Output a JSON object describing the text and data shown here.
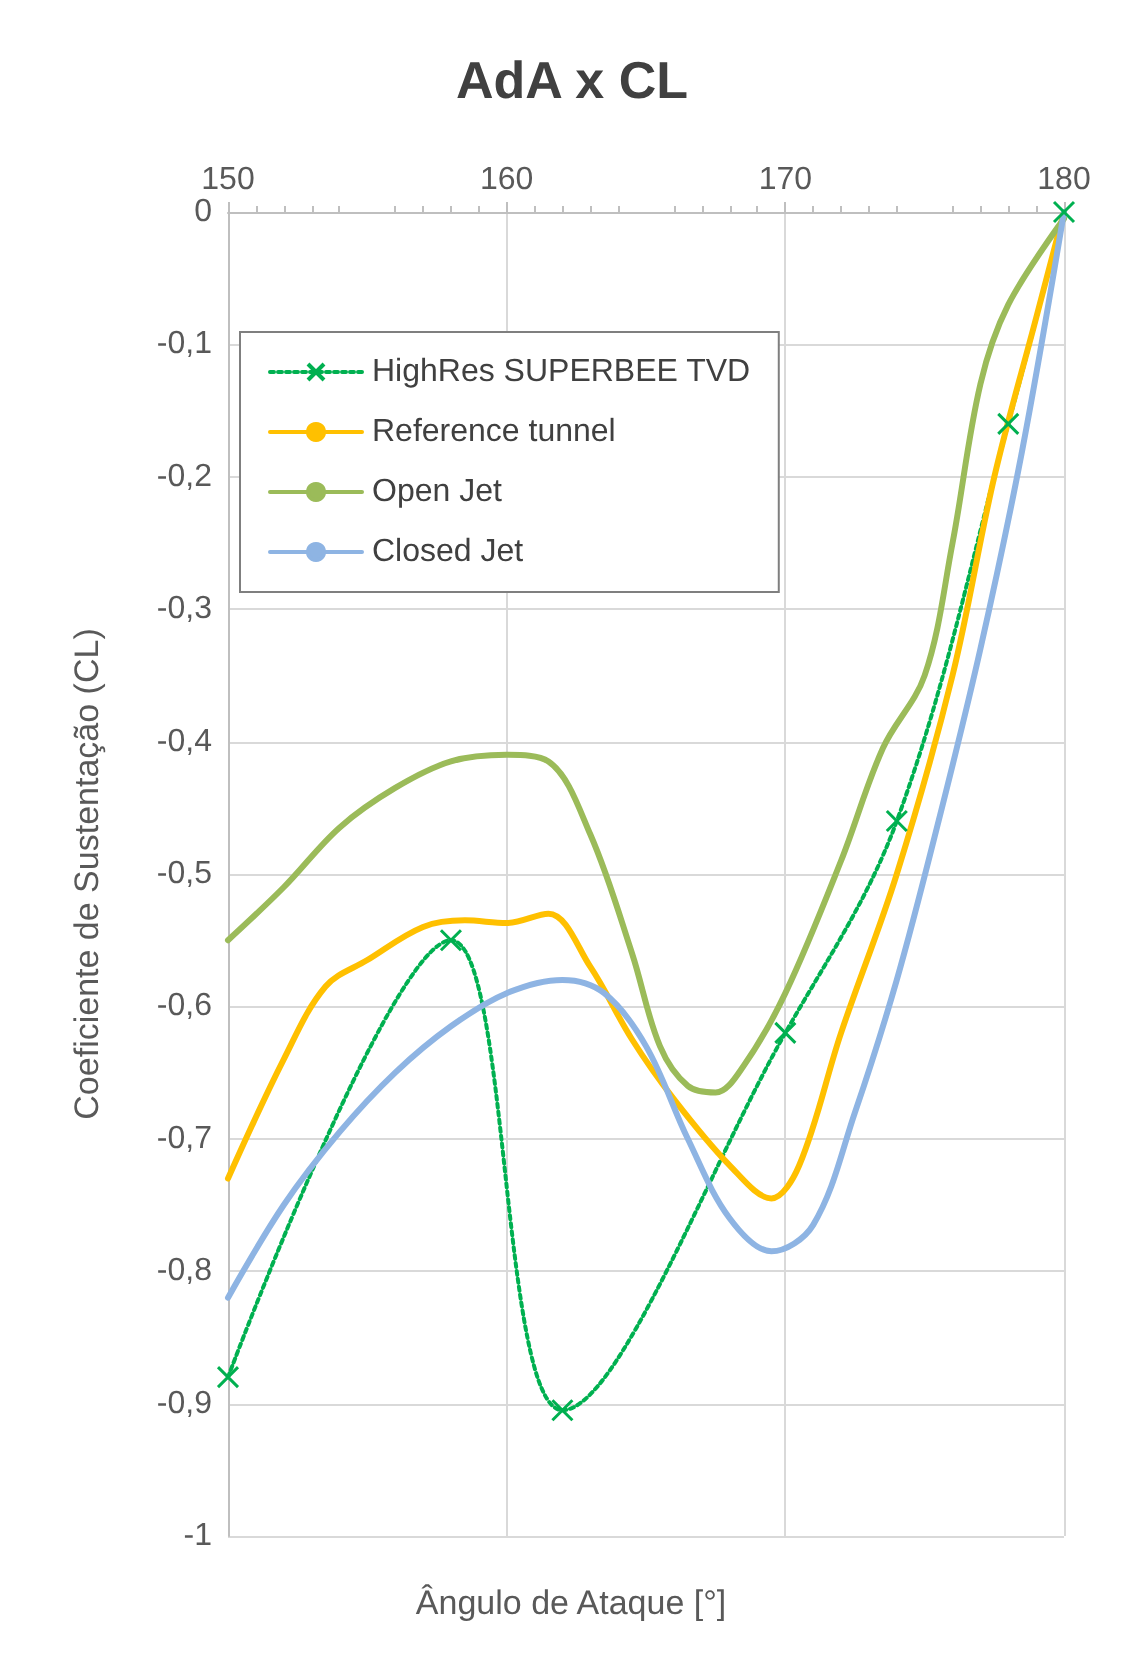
{
  "chart_data": {
    "type": "line",
    "title": "AdA x CL",
    "xlabel": "Ângulo de Ataque [°]",
    "ylabel": "Coeficiente de Sustentação (CL)",
    "xlim": [
      150,
      180
    ],
    "xticks": [
      150,
      160,
      170,
      180
    ],
    "ylim": [
      -1,
      0
    ],
    "yticks": [
      0,
      {
        "value": -0.1,
        "label": "-0,1"
      },
      {
        "value": -0.2,
        "label": "-0,2"
      },
      {
        "value": -0.3,
        "label": "-0,3"
      },
      {
        "value": -0.4,
        "label": "-0,4"
      },
      {
        "value": -0.5,
        "label": "-0,5"
      },
      {
        "value": -0.6,
        "label": "-0,6"
      },
      {
        "value": -0.7,
        "label": "-0,7"
      },
      {
        "value": -0.8,
        "label": "-0,8"
      },
      {
        "value": -0.9,
        "label": "-0,9"
      },
      -1
    ],
    "grid": true,
    "legend": "top left",
    "series": [
      {
        "name": "HighRes SUPERBEE TVD",
        "color": "#00b050",
        "line_style": "dotted",
        "marker": "cross",
        "x": [
          150,
          158,
          162,
          170,
          174,
          178,
          180
        ],
        "values": [
          -0.88,
          -0.55,
          -0.905,
          -0.62,
          -0.46,
          -0.16,
          0
        ]
      },
      {
        "name": "Reference tunnel",
        "color": "#ffc000",
        "line_style": "solid",
        "marker": "none",
        "x": [
          150,
          152,
          153.5,
          155,
          157,
          158.5,
          160,
          161.5,
          163,
          164.5,
          166,
          168,
          169.5,
          170.5,
          172,
          174,
          176,
          177.5,
          179,
          180
        ],
        "values": [
          -0.73,
          -0.64,
          -0.585,
          -0.565,
          -0.54,
          -0.535,
          -0.537,
          -0.53,
          -0.57,
          -0.625,
          -0.67,
          -0.72,
          -0.745,
          -0.72,
          -0.62,
          -0.5,
          -0.35,
          -0.2,
          -0.08,
          0
        ]
      },
      {
        "name": "Open Jet",
        "color": "#9bbb59",
        "line_style": "solid",
        "marker": "none",
        "x": [
          150,
          152,
          154,
          156,
          158,
          160,
          161.5,
          163,
          164.5,
          165.5,
          166.5,
          167.5,
          168.5,
          170,
          172,
          173.5,
          175,
          176,
          177,
          178,
          180
        ],
        "values": [
          -0.55,
          -0.51,
          -0.465,
          -0.435,
          -0.415,
          -0.41,
          -0.415,
          -0.47,
          -0.56,
          -0.63,
          -0.66,
          -0.665,
          -0.645,
          -0.59,
          -0.49,
          -0.405,
          -0.35,
          -0.25,
          -0.13,
          -0.07,
          -0.005
        ]
      },
      {
        "name": "Closed Jet",
        "color": "#8eb4e3",
        "line_style": "solid",
        "marker": "none",
        "x": [
          150,
          152,
          154,
          156,
          158,
          160,
          162,
          163.5,
          165,
          166.5,
          168,
          169.5,
          171,
          172.5,
          174,
          175.5,
          177,
          178.5,
          180
        ],
        "values": [
          -0.82,
          -0.75,
          -0.695,
          -0.65,
          -0.615,
          -0.59,
          -0.58,
          -0.59,
          -0.63,
          -0.7,
          -0.76,
          -0.785,
          -0.765,
          -0.68,
          -0.58,
          -0.46,
          -0.33,
          -0.18,
          0
        ]
      }
    ]
  }
}
